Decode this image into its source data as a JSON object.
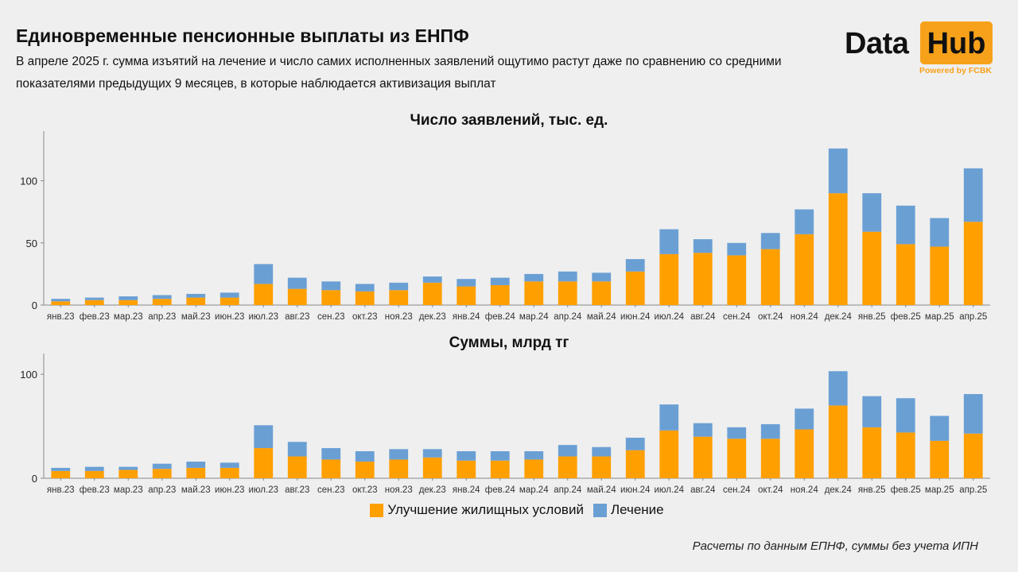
{
  "header": {
    "title": "Единовременные пенсионные выплаты из ЕНПФ",
    "subtitle": "В апреле 2025 г. сумма изъятий на лечение и число самих исполненных заявлений ощутимо растут даже по сравнению со средними показателями предыдущих 9 месяцев, в которые наблюдается активизация выплат"
  },
  "logo": {
    "word1": "Data",
    "word2": "Hub",
    "powered": "Powered by FCBK"
  },
  "colors": {
    "housing": "#ff9f00",
    "treatment": "#6a9fd4",
    "axis": "#888888"
  },
  "legend": {
    "housing": "Улучшение жилищных условий",
    "treatment": "Лечение"
  },
  "footnote": "Расчеты по данным ЕПНФ, суммы без учета ИПН",
  "chart_data": [
    {
      "type": "bar",
      "stacked": true,
      "title": "Число заявлений, тыс. ед.",
      "categories": [
        "янв.23",
        "фев.23",
        "мар.23",
        "апр.23",
        "май.23",
        "июн.23",
        "июл.23",
        "авг.23",
        "сен.23",
        "окт.23",
        "ноя.23",
        "дек.23",
        "янв.24",
        "фев.24",
        "мар.24",
        "апр.24",
        "май.24",
        "июн.24",
        "июл.24",
        "авг.24",
        "сен.24",
        "окт.24",
        "ноя.24",
        "дек.24",
        "янв.25",
        "фев.25",
        "мар.25",
        "апр.25"
      ],
      "series": [
        {
          "name": "Улучшение жилищных условий",
          "values": [
            3,
            4,
            4,
            5,
            6,
            6,
            17,
            13,
            12,
            11,
            12,
            18,
            15,
            16,
            19,
            19,
            19,
            27,
            41,
            42,
            40,
            45,
            57,
            90,
            59,
            49,
            47,
            67
          ]
        },
        {
          "name": "Лечение",
          "values": [
            2,
            2,
            3,
            3,
            3,
            4,
            16,
            9,
            7,
            6,
            6,
            5,
            6,
            6,
            6,
            8,
            7,
            10,
            20,
            11,
            10,
            13,
            20,
            36,
            31,
            31,
            23,
            43
          ]
        }
      ],
      "yticks": [
        0,
        50,
        100
      ],
      "ylim": [
        0,
        140
      ],
      "grid": false,
      "legend_position": "bottom"
    },
    {
      "type": "bar",
      "stacked": true,
      "title": "Суммы, млрд тг",
      "categories": [
        "янв.23",
        "фев.23",
        "мар.23",
        "апр.23",
        "май.23",
        "июн.23",
        "июл.23",
        "авг.23",
        "сен.23",
        "окт.23",
        "ноя.23",
        "дек.23",
        "янв.24",
        "фев.24",
        "мар.24",
        "апр.24",
        "май.24",
        "июн.24",
        "июл.24",
        "авг.24",
        "сен.24",
        "окт.24",
        "ноя.24",
        "дек.24",
        "янв.25",
        "фев.25",
        "мар.25",
        "апр.25"
      ],
      "series": [
        {
          "name": "Улучшение жилищных условий",
          "values": [
            7,
            7,
            8,
            9,
            10,
            10,
            29,
            21,
            18,
            16,
            18,
            20,
            17,
            17,
            18,
            21,
            21,
            27,
            46,
            40,
            38,
            38,
            47,
            70,
            49,
            44,
            36,
            43
          ]
        },
        {
          "name": "Лечение",
          "values": [
            3,
            4,
            3,
            5,
            6,
            5,
            22,
            14,
            11,
            10,
            10,
            8,
            9,
            9,
            8,
            11,
            9,
            12,
            25,
            13,
            11,
            14,
            20,
            33,
            30,
            33,
            24,
            38
          ]
        }
      ],
      "yticks": [
        0,
        100
      ],
      "ylim": [
        0,
        120
      ],
      "grid": false,
      "legend_position": "bottom"
    }
  ]
}
